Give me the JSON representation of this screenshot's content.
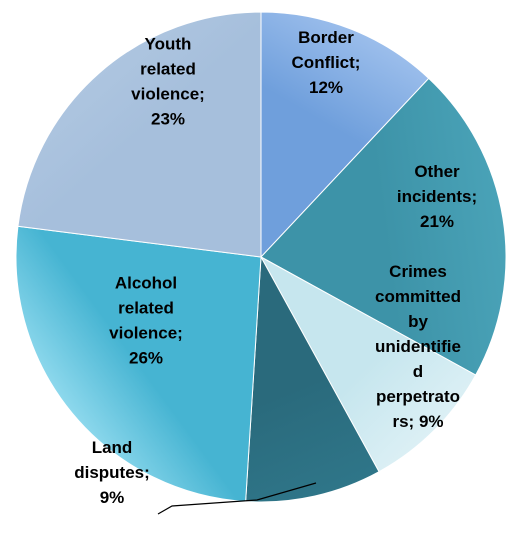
{
  "chart_data": {
    "type": "pie",
    "title": "",
    "slices": [
      {
        "name": "Border Conflict",
        "value": 12,
        "label": [
          "Border",
          "Conflict;",
          "12%"
        ],
        "color": "#6f9fdc",
        "color2": "#a3c3ee"
      },
      {
        "name": "Other incidents",
        "value": 21,
        "label": [
          "Other",
          "incidents;",
          "21%"
        ],
        "color": "#3d93a8",
        "color2": "#4aa3b8"
      },
      {
        "name": "Crimes committed by unidentified perpetrators",
        "value": 9,
        "label": [
          "Crimes",
          "committed",
          "by",
          "unidentifie",
          "d",
          "perpetrato",
          "rs; 9%"
        ],
        "color": "#c6e6ee",
        "color2": "#dff1f6"
      },
      {
        "name": "Land disputes",
        "value": 9,
        "label": [
          "Land",
          "disputes;",
          "9%"
        ],
        "color": "#2a6a7c",
        "color2": "#2f7689"
      },
      {
        "name": "Alcohol related violence",
        "value": 26,
        "label": [
          "Alcohol",
          "related",
          "violence;",
          "26%"
        ],
        "color": "#46b4d2",
        "color2": "#b4ecfb"
      },
      {
        "name": "Youth related violence",
        "value": 23,
        "label": [
          "Youth",
          "related",
          "violence;",
          "23%"
        ],
        "color": "#a6bfdc",
        "color2": "#b2c9e2"
      }
    ],
    "legend": "none",
    "grid": false
  }
}
